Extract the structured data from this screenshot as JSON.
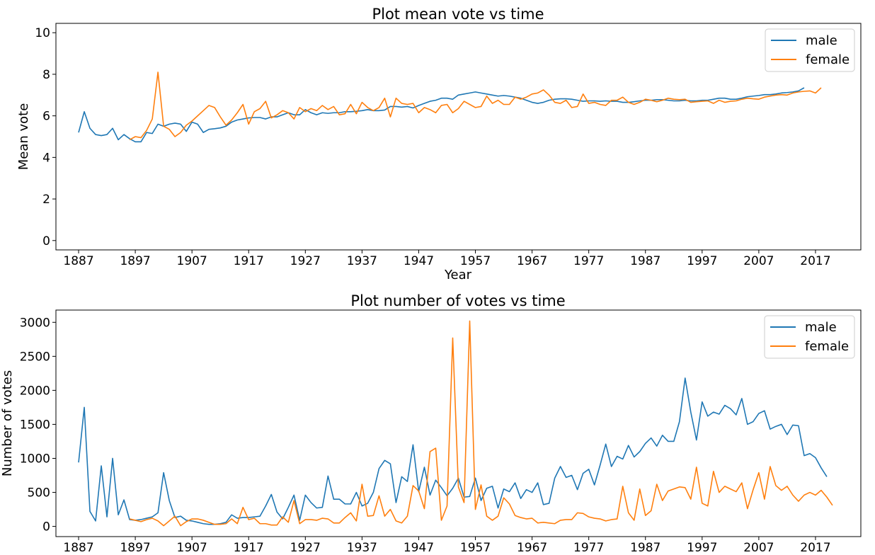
{
  "colors": {
    "male": "#1f77b4",
    "female": "#ff7f0e"
  },
  "chart_data": [
    {
      "type": "line",
      "title": "Plot mean vote vs time",
      "xlabel": "Year",
      "ylabel": "Mean vote",
      "xlim": [
        1883,
        2025
      ],
      "ylim": [
        -0.45,
        10.45
      ],
      "xticks": [
        1887,
        1897,
        1907,
        1917,
        1927,
        1937,
        1947,
        1957,
        1967,
        1977,
        1987,
        1997,
        2007,
        2017
      ],
      "xtick_labels": [
        "1887",
        "1897",
        "1907",
        "1917",
        "1927",
        "1937",
        "1947",
        "1957",
        "1967",
        "1977",
        "1987",
        "1997",
        "2007",
        "2017"
      ],
      "yticks": [
        0,
        2,
        4,
        6,
        8,
        10
      ],
      "ytick_labels": [
        "0",
        "2",
        "4",
        "6",
        "8",
        "10"
      ],
      "legend": "top-right",
      "grid": false,
      "series": [
        {
          "name": "male",
          "x_start": 1887,
          "values": [
            5.2,
            6.2,
            5.4,
            5.1,
            5.05,
            5.1,
            5.4,
            4.85,
            5.1,
            4.9,
            4.75,
            4.75,
            5.2,
            5.15,
            5.6,
            5.5,
            5.6,
            5.65,
            5.6,
            5.25,
            5.7,
            5.6,
            5.2,
            5.35,
            5.38,
            5.42,
            5.5,
            5.7,
            5.8,
            5.85,
            5.9,
            5.92,
            5.92,
            5.85,
            5.95,
            5.95,
            6.05,
            6.15,
            6.05,
            6.05,
            6.3,
            6.15,
            6.05,
            6.15,
            6.12,
            6.15,
            6.15,
            6.2,
            6.2,
            6.22,
            6.25,
            6.3,
            6.25,
            6.25,
            6.28,
            6.45,
            6.45,
            6.42,
            6.45,
            6.38,
            6.5,
            6.6,
            6.7,
            6.75,
            6.85,
            6.85,
            6.8,
            7.0,
            7.05,
            7.1,
            7.15,
            7.1,
            7.05,
            7.0,
            6.95,
            6.98,
            6.95,
            6.9,
            6.85,
            6.75,
            6.65,
            6.6,
            6.65,
            6.75,
            6.8,
            6.82,
            6.82,
            6.8,
            6.75,
            6.7,
            6.72,
            6.72,
            6.7,
            6.72,
            6.7,
            6.7,
            6.65,
            6.65,
            6.68,
            6.72,
            6.75,
            6.75,
            6.78,
            6.78,
            6.75,
            6.72,
            6.72,
            6.75,
            6.72,
            6.72,
            6.75,
            6.75,
            6.8,
            6.85,
            6.85,
            6.8,
            6.8,
            6.85,
            6.92,
            6.95,
            6.98,
            7.02,
            7.02,
            7.05,
            7.1,
            7.12,
            7.15,
            7.2,
            7.35
          ]
        },
        {
          "name": "female",
          "x_start": 1896,
          "values": [
            4.85,
            5.0,
            4.95,
            5.3,
            5.85,
            8.1,
            5.5,
            5.35,
            5.0,
            5.2,
            5.55,
            5.75,
            6.0,
            6.25,
            6.5,
            6.4,
            5.95,
            5.55,
            5.8,
            6.15,
            6.55,
            5.6,
            6.2,
            6.35,
            6.7,
            5.9,
            6.05,
            6.25,
            6.15,
            5.85,
            6.4,
            6.2,
            6.35,
            6.25,
            6.5,
            6.3,
            6.45,
            6.05,
            6.1,
            6.55,
            6.1,
            6.65,
            6.4,
            6.25,
            6.4,
            6.85,
            5.95,
            6.85,
            6.6,
            6.55,
            6.6,
            6.15,
            6.4,
            6.3,
            6.15,
            6.5,
            6.55,
            6.15,
            6.35,
            6.7,
            6.55,
            6.4,
            6.45,
            6.95,
            6.6,
            6.75,
            6.55,
            6.55,
            6.9,
            6.8,
            6.9,
            7.05,
            7.1,
            7.25,
            7.0,
            6.65,
            6.6,
            6.75,
            6.4,
            6.45,
            7.05,
            6.6,
            6.65,
            6.55,
            6.5,
            6.75,
            6.75,
            6.9,
            6.65,
            6.55,
            6.65,
            6.8,
            6.75,
            6.68,
            6.75,
            6.85,
            6.8,
            6.78,
            6.8,
            6.65,
            6.68,
            6.7,
            6.72,
            6.6,
            6.75,
            6.65,
            6.7,
            6.72,
            6.8,
            6.85,
            6.82,
            6.8,
            6.9,
            6.95,
            7.0,
            7.02,
            7.0,
            7.1,
            7.15,
            7.18,
            7.2,
            7.1,
            7.35
          ]
        }
      ]
    },
    {
      "type": "line",
      "title": "Plot number of votes vs time",
      "xlabel": "",
      "ylabel": "Number of votes",
      "xlim": [
        1883,
        2025
      ],
      "ylim": [
        -150,
        3180
      ],
      "xticks": [
        1887,
        1897,
        1907,
        1917,
        1927,
        1937,
        1947,
        1957,
        1967,
        1977,
        1987,
        1997,
        2007,
        2017
      ],
      "xtick_labels": [
        "1887",
        "1897",
        "1907",
        "1917",
        "1927",
        "1937",
        "1947",
        "1957",
        "1967",
        "1977",
        "1987",
        "1997",
        "2007",
        "2017"
      ],
      "yticks": [
        0,
        500,
        1000,
        1500,
        2000,
        2500,
        3000
      ],
      "ytick_labels": [
        "0",
        "500",
        "1000",
        "1500",
        "2000",
        "2500",
        "3000"
      ],
      "legend": "top-right",
      "grid": false,
      "series": [
        {
          "name": "male",
          "x_start": 1887,
          "values": [
            940,
            1750,
            220,
            80,
            890,
            140,
            1000,
            170,
            390,
            100,
            90,
            100,
            120,
            140,
            200,
            790,
            380,
            130,
            150,
            90,
            80,
            60,
            40,
            30,
            30,
            40,
            60,
            170,
            120,
            130,
            130,
            140,
            150,
            300,
            470,
            210,
            110,
            280,
            460,
            90,
            460,
            350,
            270,
            280,
            740,
            400,
            400,
            330,
            330,
            500,
            300,
            340,
            500,
            850,
            970,
            920,
            350,
            730,
            660,
            1200,
            510,
            870,
            460,
            680,
            570,
            450,
            560,
            710,
            430,
            440,
            710,
            380,
            560,
            590,
            270,
            550,
            510,
            640,
            410,
            540,
            500,
            640,
            320,
            340,
            710,
            880,
            720,
            750,
            540,
            780,
            840,
            610,
            900,
            1210,
            880,
            1030,
            990,
            1190,
            1020,
            1100,
            1220,
            1300,
            1180,
            1340,
            1250,
            1250,
            1540,
            2180,
            1680,
            1270,
            1830,
            1620,
            1680,
            1650,
            1780,
            1730,
            1640,
            1880,
            1500,
            1540,
            1660,
            1700,
            1430,
            1470,
            1500,
            1350,
            1490,
            1480,
            1040,
            1070,
            1010,
            860,
            730
          ]
        },
        {
          "name": "female",
          "x_start": 1896,
          "values": [
            110,
            90,
            70,
            100,
            120,
            80,
            10,
            80,
            150,
            10,
            70,
            110,
            110,
            90,
            60,
            30,
            30,
            40,
            110,
            40,
            280,
            100,
            120,
            40,
            40,
            20,
            20,
            140,
            60,
            380,
            40,
            100,
            100,
            90,
            120,
            110,
            50,
            50,
            130,
            200,
            80,
            620,
            150,
            160,
            450,
            150,
            250,
            80,
            50,
            150,
            600,
            520,
            260,
            1100,
            1150,
            90,
            300,
            2770,
            580,
            350,
            3020,
            250,
            610,
            150,
            90,
            150,
            420,
            330,
            160,
            130,
            110,
            120,
            50,
            60,
            50,
            40,
            90,
            100,
            100,
            200,
            190,
            140,
            120,
            110,
            80,
            100,
            110,
            590,
            200,
            90,
            550,
            160,
            230,
            620,
            380,
            520,
            550,
            580,
            570,
            400,
            870,
            340,
            300,
            810,
            500,
            590,
            550,
            510,
            640,
            260,
            540,
            790,
            400,
            880,
            600,
            530,
            590,
            460,
            370,
            460,
            500,
            460,
            530,
            430,
            310
          ]
        }
      ]
    }
  ]
}
